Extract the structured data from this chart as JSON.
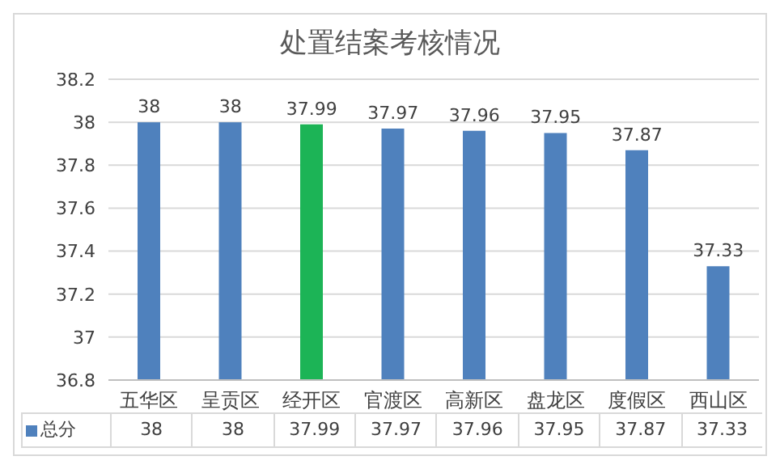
{
  "chart_data": {
    "type": "bar",
    "title": "处置结案考核情况",
    "categories": [
      "五华区",
      "呈贡区",
      "经开区",
      "官渡区",
      "高新区",
      "盘龙区",
      "度假区",
      "西山区"
    ],
    "series": [
      {
        "name": "总分",
        "color": "#4f81bd",
        "colors": [
          "#4f81bd",
          "#4f81bd",
          "#1cb456",
          "#4f81bd",
          "#4f81bd",
          "#4f81bd",
          "#4f81bd",
          "#4f81bd"
        ],
        "values": [
          38,
          38,
          37.99,
          37.97,
          37.96,
          37.95,
          37.87,
          37.33
        ]
      }
    ],
    "annotations": [
      {
        "text": "38",
        "x": "五华区",
        "y": 38
      },
      {
        "text": "38",
        "x": "呈贡区",
        "y": 38
      },
      {
        "text": "37.99",
        "x": "经开区",
        "y": 37.99
      },
      {
        "text": "37.97",
        "x": "官渡区",
        "y": 37.97
      },
      {
        "text": "37.96",
        "x": "高新区",
        "y": 37.96
      },
      {
        "text": "37.95",
        "x": "盘龙区",
        "y": 37.95
      },
      {
        "text": "37.87",
        "x": "度假区",
        "y": 37.87
      },
      {
        "text": "37.33",
        "x": "西山区",
        "y": 37.33
      }
    ],
    "ylim": [
      36.8,
      38.2
    ],
    "yticks": [
      36.8,
      37,
      37.2,
      37.4,
      37.6,
      37.8,
      38,
      38.2
    ],
    "grid": "y",
    "data_labels": true,
    "legend": "bottom"
  }
}
